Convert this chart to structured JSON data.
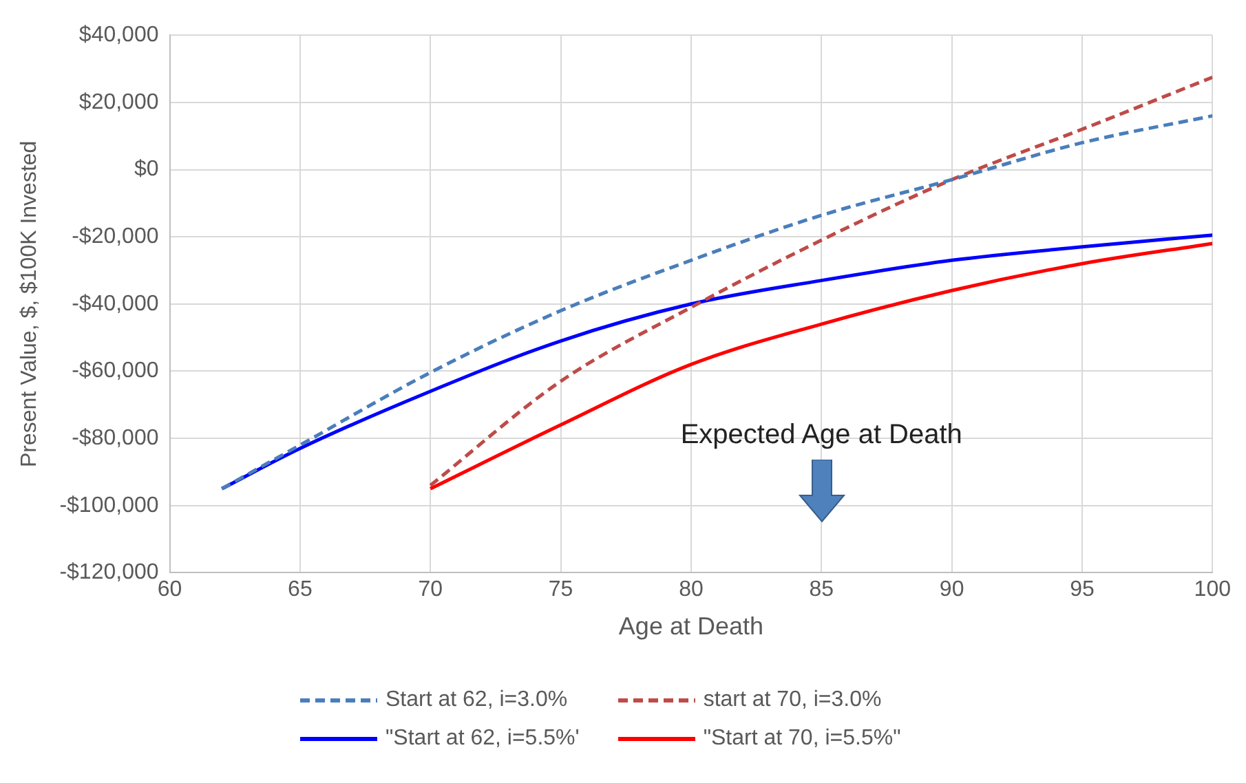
{
  "chart_data": {
    "type": "line",
    "xlabel": "Age at Death",
    "ylabel": "Present Value, $, $100K Invested",
    "xlim": [
      60,
      100
    ],
    "xticks": [
      60,
      65,
      70,
      75,
      80,
      85,
      90,
      95,
      100
    ],
    "ylim": [
      -120000,
      40000
    ],
    "yticks": [
      {
        "value": -120000,
        "label": "-$120,000"
      },
      {
        "value": -100000,
        "label": "-$100,000"
      },
      {
        "value": -80000,
        "label": "-$80,000"
      },
      {
        "value": -60000,
        "label": "-$60,000"
      },
      {
        "value": -40000,
        "label": "-$40,000"
      },
      {
        "value": -20000,
        "label": "-$20,000"
      },
      {
        "value": 0,
        "label": "$0"
      },
      {
        "value": 20000,
        "label": "$20,000"
      },
      {
        "value": 40000,
        "label": "$40,000"
      }
    ],
    "grid": true,
    "legend": "bottom",
    "marker": "none",
    "annotations": [
      "Expected Age at Death"
    ],
    "series": [
      {
        "name": "Start at 62, i=3.0%",
        "color": "#4a7ebb",
        "line_style": "dashed",
        "x": [
          62,
          65,
          70,
          75,
          80,
          85,
          90,
          95,
          100
        ],
        "values": [
          -95000,
          -82000,
          -60400,
          -42000,
          -27000,
          -13600,
          -3000,
          8000,
          16000
        ]
      },
      {
        "name": "start at 70, i=3.0%",
        "color": "#be4b48",
        "line_style": "dashed",
        "x": [
          70,
          75,
          80,
          85,
          90,
          95,
          100
        ],
        "values": [
          -94000,
          -63000,
          -41000,
          -21000,
          -3000,
          12000,
          27500
        ]
      },
      {
        "name": "\"Start at 62, i=5.5%'",
        "color": "#0000ff",
        "line_style": "solid",
        "x": [
          62,
          65,
          70,
          75,
          80,
          85,
          90,
          95,
          100
        ],
        "values": [
          -95000,
          -83000,
          -66000,
          -51000,
          -40000,
          -33000,
          -27000,
          -23000,
          -19500
        ]
      },
      {
        "name": "\"Start at 70, i=5.5%\"",
        "color": "#ff0000",
        "line_style": "solid",
        "x": [
          70,
          75,
          80,
          85,
          90,
          95,
          100
        ],
        "values": [
          -95000,
          -76000,
          -58000,
          -46000,
          -36000,
          -28000,
          -22000
        ]
      }
    ]
  }
}
